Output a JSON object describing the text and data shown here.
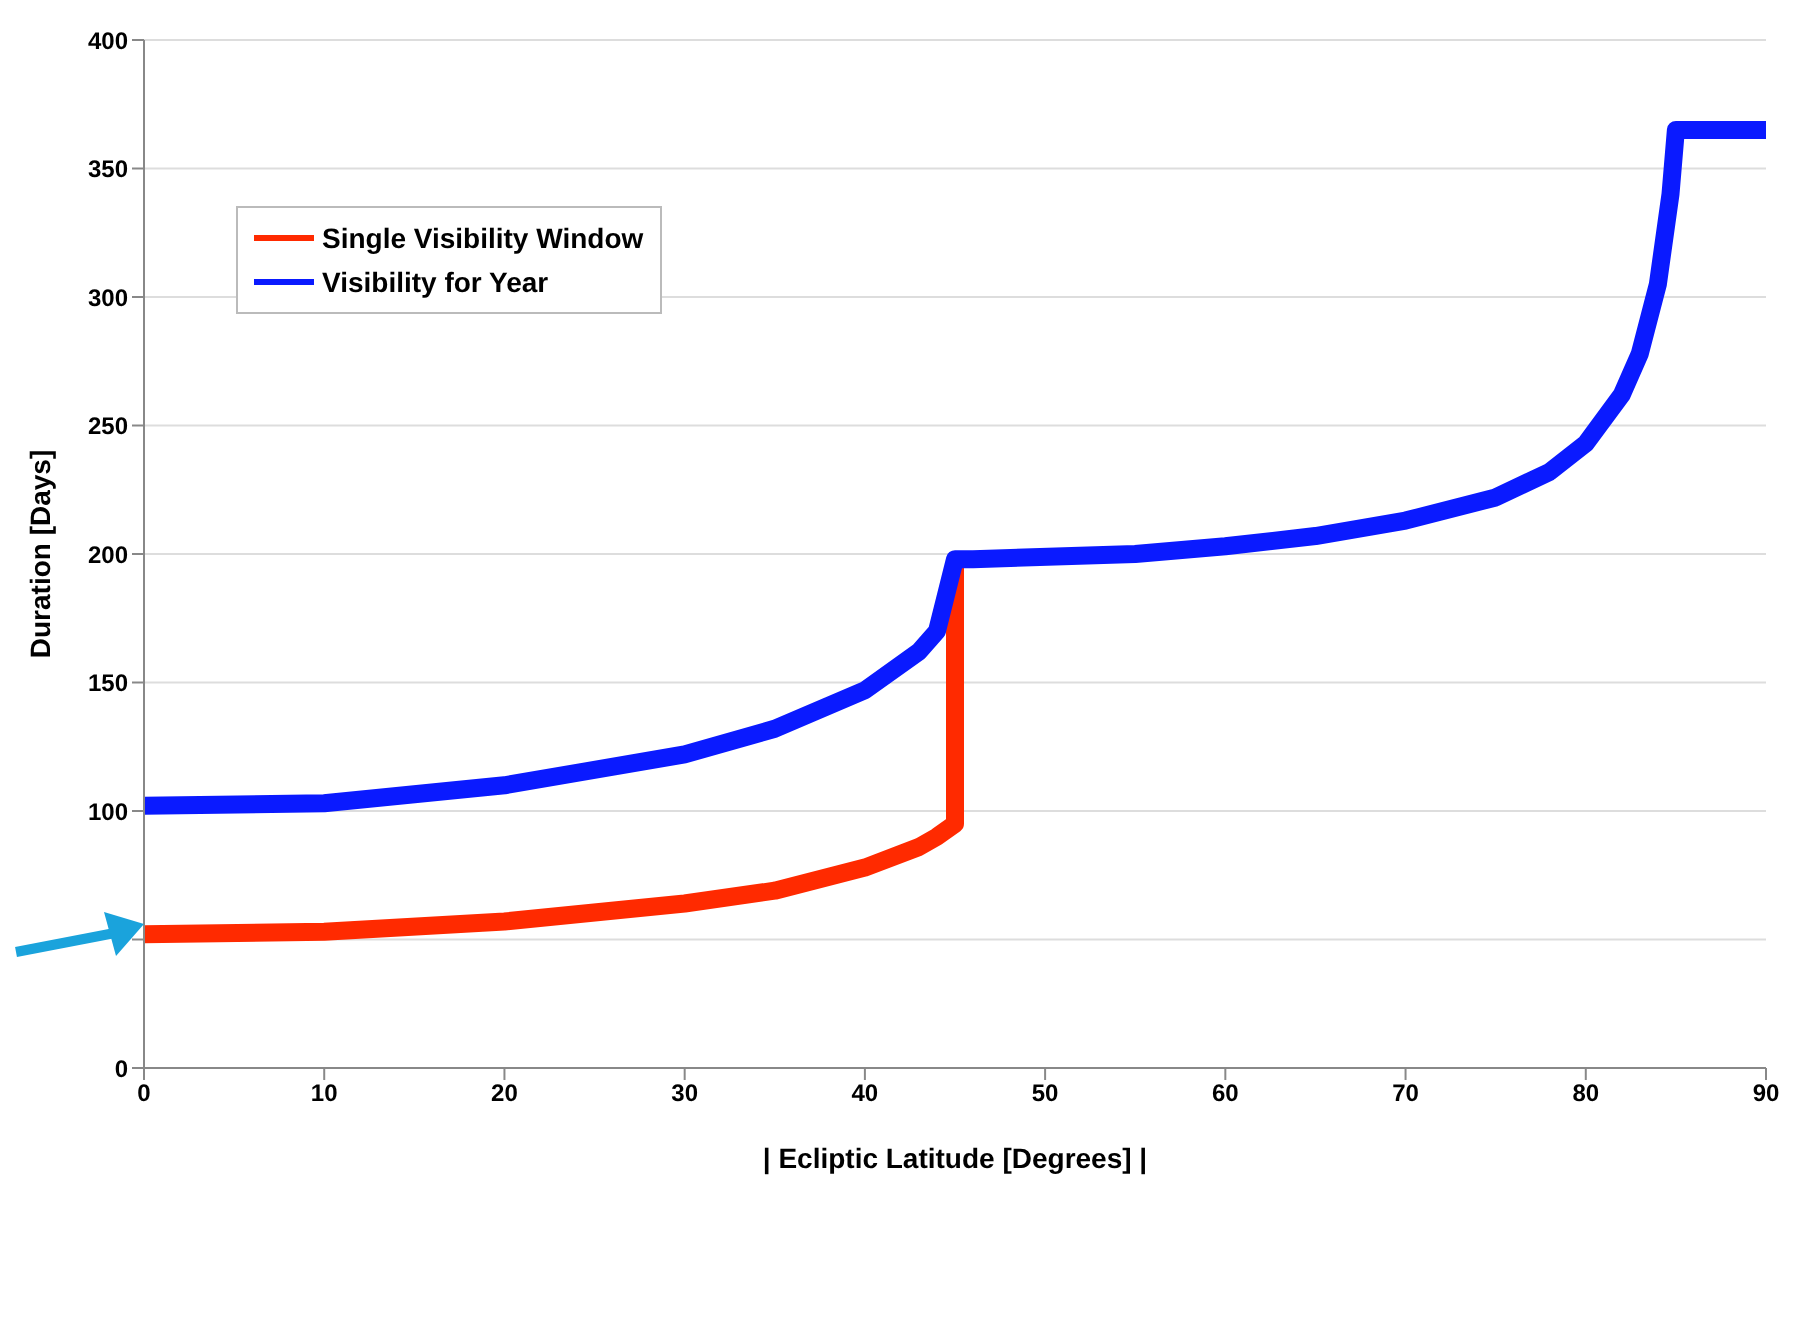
{
  "chart_data": {
    "type": "line",
    "xlabel": "| Ecliptic Latitude [Degrees] |",
    "ylabel": "Duration [Days]",
    "xlim": [
      0,
      90
    ],
    "xticks": [
      0,
      10,
      20,
      30,
      40,
      50,
      60,
      70,
      80,
      90
    ],
    "ylim": [
      0,
      400
    ],
    "yticks": [
      0,
      {
        "value": 50,
        "label": null
      },
      100,
      150,
      200,
      250,
      300,
      350,
      400
    ],
    "grid": "y",
    "legend": "top left",
    "marker": "none",
    "line_style": "solid",
    "series": [
      {
        "name": "Single Visibility Window",
        "color": "#ff2a00",
        "x": [
          0,
          10,
          20,
          30,
          35,
          40,
          43,
          44,
          45,
          45
        ],
        "values": [
          52,
          53,
          57,
          64,
          69,
          78,
          86,
          90,
          95,
          195
        ]
      },
      {
        "name": "Visibility for Year",
        "color": "#0a1aff",
        "x": [
          0,
          10,
          20,
          30,
          35,
          40,
          43,
          44,
          45,
          46,
          55,
          60,
          65,
          70,
          75,
          78,
          80,
          82,
          83,
          84,
          84.7,
          85,
          90
        ],
        "values": [
          102,
          103,
          110,
          122,
          132,
          147,
          162,
          170,
          198,
          198,
          200,
          203,
          207,
          213,
          222,
          232,
          243,
          262,
          278,
          305,
          340,
          365,
          365
        ]
      }
    ]
  }
}
